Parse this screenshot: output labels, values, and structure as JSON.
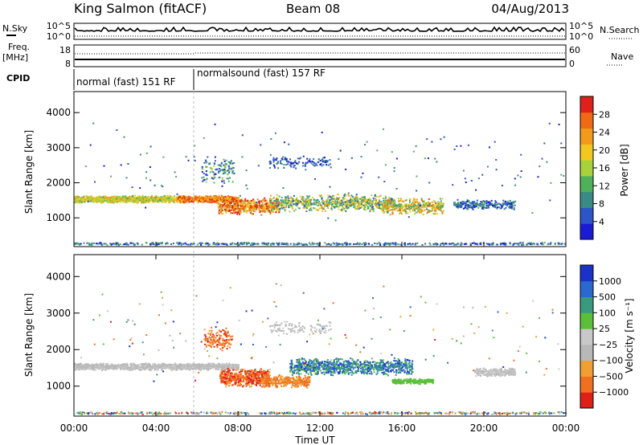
{
  "header": {
    "station": "King Salmon (fitACF)",
    "beam": "Beam 08",
    "date": "04/Aug/2013"
  },
  "noise_panel": {
    "left_label": "N.Sky",
    "left_ticks": [
      "10^5",
      "10^0"
    ],
    "right_label": "N.Search",
    "right_ticks": [
      "10^5",
      "10^0"
    ]
  },
  "freq_panel": {
    "left_label_line1": "Freq.",
    "left_label_line2": "[MHz]",
    "left_ticks": [
      "18",
      "8"
    ],
    "right_label": "Nave",
    "right_ticks": [
      "60",
      "0"
    ]
  },
  "cpid": {
    "label": "CPID",
    "segments": [
      {
        "text": "normal (fast) 151 RF",
        "start_hour": 0
      },
      {
        "text": "normalsound (fast) 157 RF",
        "start_hour": 6
      }
    ]
  },
  "slant_range_ylabel": "Slant Range [km]",
  "x_axis": {
    "label": "Time UT",
    "ticks": [
      "00:00",
      "04:00",
      "08:00",
      "12:00",
      "16:00",
      "20:00",
      "00:00"
    ],
    "range_hours": [
      0,
      24
    ]
  },
  "colors": {
    "power_scale": [
      "#1b1bd6",
      "#2b55c8",
      "#3a8a86",
      "#4fb05a",
      "#a8d23a",
      "#f2c81e",
      "#f39a1a",
      "#f06a14",
      "#e0201a"
    ],
    "velocity_scale": [
      "#1a32c8",
      "#2a6ad0",
      "#3a9a80",
      "#5ac03a",
      "#c8c8c8",
      "#b8b8b8",
      "#f0a030",
      "#f07020",
      "#e02018"
    ]
  },
  "chart_data": [
    {
      "type": "heatmap",
      "name": "power",
      "ylabel": "Slant Range [km]",
      "ylim": [
        180,
        4600
      ],
      "yticks": [
        "1000",
        "2000",
        "3000",
        "4000"
      ],
      "ytick_values": [
        1000,
        2000,
        3000,
        4000
      ],
      "colorbar_label": "Power [dB]",
      "colorbar_ticks": [
        "4",
        "8",
        "12",
        "16",
        "20",
        "24",
        "28"
      ],
      "colorbar_range": [
        0,
        30
      ]
    },
    {
      "type": "heatmap",
      "name": "velocity",
      "ylabel": "Slant Range [km]",
      "ylim": [
        180,
        4600
      ],
      "yticks": [
        "1000",
        "2000",
        "3000",
        "4000"
      ],
      "ytick_values": [
        1000,
        2000,
        3000,
        4000
      ],
      "colorbar_label": "Velocity [m s⁻¹]",
      "colorbar_ticks": [
        "1000",
        "500",
        "100",
        "25",
        "−25",
        "−100",
        "−500",
        "−1000"
      ]
    }
  ]
}
